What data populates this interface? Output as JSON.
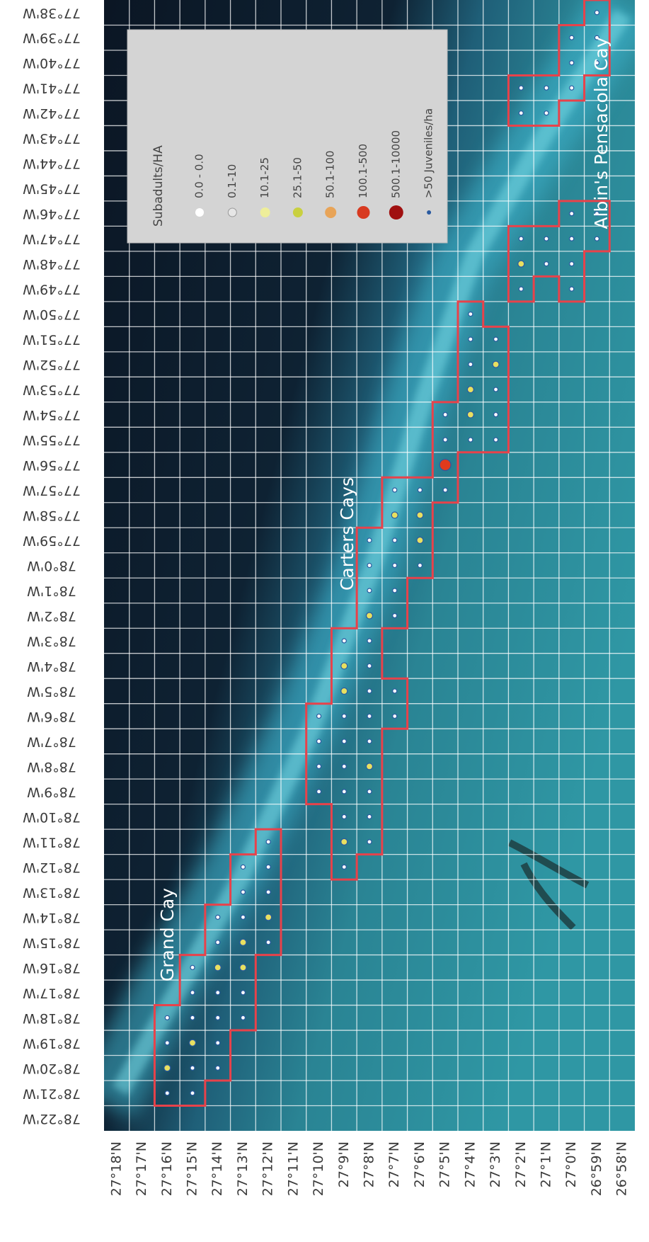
{
  "longitude_labels": [
    "77°38'W",
    "77°39'W",
    "77°40'W",
    "77°41'W",
    "77°42'W",
    "77°43'W",
    "77°44'W",
    "77°45'W",
    "77°46'W",
    "77°47'W",
    "77°48'W",
    "77°49'W",
    "77°50'W",
    "77°51'W",
    "77°52'W",
    "77°53'W",
    "77°54'W",
    "77°55'W",
    "77°56'W",
    "77°57'W",
    "77°58'W",
    "77°59'W",
    "78°0'W",
    "78°1'W",
    "78°2'W",
    "78°3'W",
    "78°4'W",
    "78°5'W",
    "78°6'W",
    "78°7'W",
    "78°8'W",
    "78°9'W",
    "78°10'W",
    "78°11'W",
    "78°12'W",
    "78°13'W",
    "78°14'W",
    "78°15'W",
    "78°16'W",
    "78°17'W",
    "78°18'W",
    "78°19'W",
    "78°20'W",
    "78°21'W",
    "78°22'W"
  ],
  "latitude_labels": [
    "27°18'N",
    "27°17'N",
    "27°16'N",
    "27°15'N",
    "27°14'N",
    "27°13'N",
    "27°12'N",
    "27°11'N",
    "27°10'N",
    "27°9'N",
    "27°8'N",
    "27°7'N",
    "27°6'N",
    "27°5'N",
    "27°4'N",
    "27°3'N",
    "27°2'N",
    "27°1'N",
    "27°0'N",
    "26°59'N",
    "26°58'N"
  ],
  "place_labels": [
    "Grand Cay",
    "Carters Cays",
    "Albin's Pensacola Cay"
  ],
  "legend": {
    "title": "Subadults/HA",
    "items": [
      "0.0 - 0.0",
      "0.1-10",
      "10.1-25",
      "25.1-50",
      "50.1-100",
      "100.1-500",
      "500.1-10000",
      ">50 Juveniles/ha"
    ]
  }
}
